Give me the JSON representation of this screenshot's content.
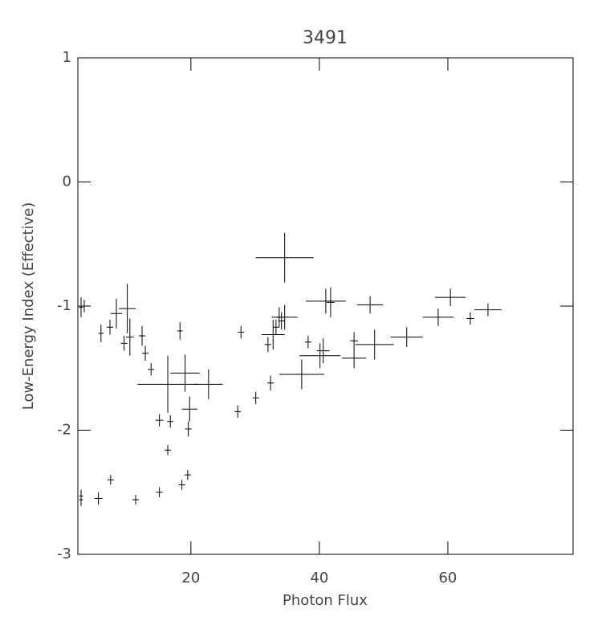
{
  "chart_data": {
    "type": "errorbar",
    "title": "3491",
    "x_label": "Photon Flux",
    "y_label": "Low-Energy Index (Effective)",
    "xlim": [
      2.4,
      79.5
    ],
    "ylim": [
      -3,
      1
    ],
    "xticks": [
      20,
      40,
      60
    ],
    "yticks": [
      -3,
      -2,
      -1,
      0,
      1
    ],
    "color": "#000000",
    "x": [
      2.9,
      3.4,
      2.9,
      2.9,
      5.6,
      6.0,
      7.4,
      7.5,
      8.4,
      9.6,
      10.1,
      10.5,
      11.4,
      12.4,
      12.9,
      13.8,
      15.1,
      15.1,
      16.4,
      22.75,
      16.4,
      16.8,
      18.3,
      18.6,
      19.1,
      19.6,
      19.8,
      19.5,
      27.3,
      27.8,
      30.1,
      32.0,
      32.4,
      32.8,
      33.25,
      33.75,
      34.1,
      34.6,
      34.6,
      37.25,
      38.25,
      40.1,
      40.6,
      41.0,
      41.75,
      45.4,
      45.4,
      47.9,
      48.6,
      53.6,
      58.5,
      60.4,
      63.5,
      66.25
    ],
    "y": [
      -1.01,
      -1.0,
      -2.53,
      -2.56,
      -2.55,
      -1.22,
      -1.17,
      -2.4,
      -1.06,
      -1.3,
      -1.02,
      -1.25,
      -2.56,
      -1.24,
      -1.38,
      -1.51,
      -2.5,
      -1.92,
      -1.63,
      -1.63,
      -2.16,
      -1.93,
      -1.2,
      -2.44,
      -1.54,
      -1.99,
      -1.83,
      -2.36,
      -1.85,
      -1.21,
      -1.74,
      -1.31,
      -1.62,
      -1.23,
      -1.17,
      -1.09,
      -1.12,
      -1.09,
      -0.61,
      -1.55,
      -1.29,
      -1.4,
      -1.36,
      -0.96,
      -0.97,
      -1.42,
      -1.28,
      -0.99,
      -1.31,
      -1.25,
      -1.09,
      -0.93,
      -1.1,
      -1.03
    ],
    "xerr": [
      0.3,
      0.3,
      0.3,
      0.3,
      0.6,
      0.4,
      0.5,
      0.5,
      0.9,
      0.5,
      1.3,
      0.6,
      0.5,
      0.5,
      0.5,
      0.5,
      0.5,
      0.6,
      4.7,
      2.2,
      0.5,
      0.5,
      0.4,
      0.5,
      2.3,
      0.5,
      1.2,
      0.5,
      0.5,
      0.5,
      0.5,
      0.5,
      0.5,
      1.8,
      0.5,
      0.5,
      0.5,
      2.0,
      4.5,
      3.5,
      0.5,
      3.2,
      1.0,
      3.1,
      0.6,
      1.9,
      0.6,
      2.0,
      3.0,
      2.5,
      2.4,
      2.4,
      0.6,
      2.1
    ],
    "yerr": [
      0.08,
      0.05,
      0.05,
      0.05,
      0.05,
      0.07,
      0.06,
      0.04,
      0.12,
      0.06,
      0.2,
      0.15,
      0.04,
      0.08,
      0.06,
      0.05,
      0.04,
      0.05,
      0.23,
      0.12,
      0.04,
      0.05,
      0.07,
      0.04,
      0.15,
      0.06,
      0.1,
      0.04,
      0.05,
      0.05,
      0.05,
      0.06,
      0.06,
      0.12,
      0.06,
      0.08,
      0.07,
      0.1,
      0.2,
      0.12,
      0.05,
      0.1,
      0.1,
      0.1,
      0.12,
      0.08,
      0.07,
      0.07,
      0.12,
      0.08,
      0.07,
      0.07,
      0.05,
      0.05
    ]
  }
}
